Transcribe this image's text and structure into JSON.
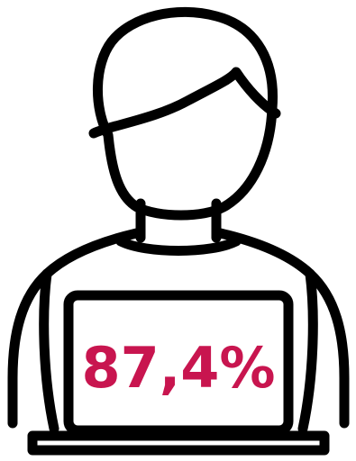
{
  "stat": {
    "value": "87,4%",
    "color": "#c8154f"
  },
  "illustration": {
    "icon": "person-with-laptop-icon",
    "stroke_color": "#000000"
  }
}
